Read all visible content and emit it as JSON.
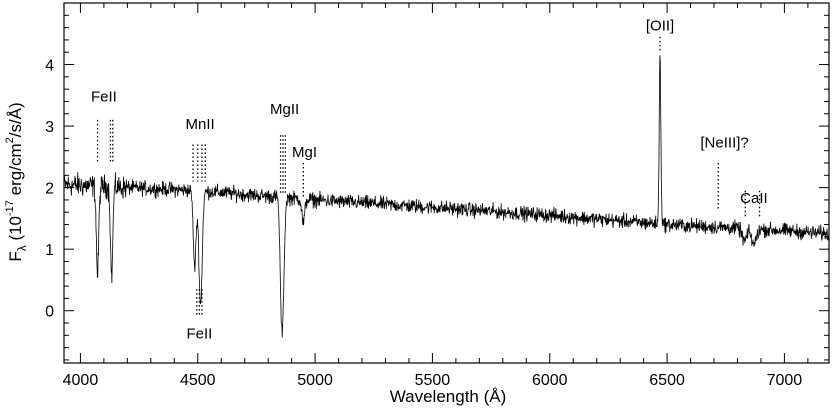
{
  "chart_data": {
    "type": "line",
    "title": "",
    "xlabel": "Wavelength (Å)",
    "ylabel": {
      "base": "F",
      "sub": "λ",
      "pre": " (10",
      "exp": "-17",
      "mid": " erg/cm",
      "exp2": "2",
      "post": "/s/Å)"
    },
    "xlim": [
      3930,
      7190
    ],
    "ylim": [
      -0.85,
      5.0
    ],
    "xticks": [
      4000,
      4500,
      5000,
      5500,
      6000,
      6500,
      7000
    ],
    "yticks": [
      0,
      1,
      2,
      3,
      4
    ],
    "grid": false,
    "series": [
      {
        "color": "#000000",
        "continuum": [
          [
            3930,
            2.05
          ],
          [
            4200,
            2.0
          ],
          [
            4500,
            1.95
          ],
          [
            5000,
            1.8
          ],
          [
            5500,
            1.68
          ],
          [
            6000,
            1.55
          ],
          [
            6500,
            1.4
          ],
          [
            7000,
            1.3
          ],
          [
            7190,
            1.25
          ]
        ],
        "noise": 0.09,
        "absorption_features": [
          {
            "x": 4073,
            "depth": 1.45,
            "width": 5
          },
          {
            "x": 4133,
            "depth": 1.45,
            "width": 5
          },
          {
            "x": 4487,
            "depth": 1.25,
            "width": 6
          },
          {
            "x": 4512,
            "depth": 1.85,
            "width": 7
          },
          {
            "x": 4856,
            "depth": 1.5,
            "width": 6
          },
          {
            "x": 4864,
            "depth": 1.25,
            "width": 6
          },
          {
            "x": 4950,
            "depth": 0.4,
            "width": 6
          },
          {
            "x": 6830,
            "depth": 0.2,
            "width": 10
          },
          {
            "x": 6870,
            "depth": 0.25,
            "width": 10
          }
        ],
        "emission_features": [
          {
            "x": 6470,
            "height": 2.75,
            "width": 3.5
          }
        ]
      }
    ],
    "annotations": [
      {
        "text": "FeII",
        "x": 4100,
        "text_y": 3.4,
        "markers": [
          {
            "x": 4073,
            "y0": 3.1,
            "y1": 2.4
          },
          {
            "x": 4128,
            "y0": 3.1,
            "y1": 2.4
          },
          {
            "x": 4138,
            "y0": 3.1,
            "y1": 2.4
          }
        ]
      },
      {
        "text": "MnII",
        "x": 4510,
        "text_y": 2.95,
        "markers": [
          {
            "x": 4480,
            "y0": 2.7,
            "y1": 2.1
          },
          {
            "x": 4500,
            "y0": 2.7,
            "y1": 2.1
          },
          {
            "x": 4518,
            "y0": 2.7,
            "y1": 2.1
          },
          {
            "x": 4532,
            "y0": 2.7,
            "y1": 2.1
          }
        ]
      },
      {
        "text": "MgII",
        "x": 4870,
        "text_y": 3.2,
        "markers": [
          {
            "x": 4853,
            "y0": 2.85,
            "y1": 1.9
          },
          {
            "x": 4863,
            "y0": 2.85,
            "y1": 1.9
          },
          {
            "x": 4873,
            "y0": 2.85,
            "y1": 1.9
          }
        ]
      },
      {
        "text": "MgI",
        "x": 4955,
        "text_y": 2.5,
        "markers": [
          {
            "x": 4950,
            "y0": 2.4,
            "y1": 1.85
          }
        ]
      },
      {
        "text": "[OII]",
        "x": 6470,
        "text_y": 4.55,
        "markers": [
          {
            "x": 6470,
            "y0": 4.45,
            "y1": 4.2
          }
        ]
      },
      {
        "text": "[NeIII]?",
        "x": 6745,
        "text_y": 2.65,
        "markers": [
          {
            "x": 6718,
            "y0": 2.4,
            "y1": 1.65
          }
        ]
      },
      {
        "text": "CaII",
        "x": 6870,
        "text_y": 1.75,
        "markers": [
          {
            "x": 6833,
            "y0": 1.95,
            "y1": 1.5
          },
          {
            "x": 6894,
            "y0": 1.95,
            "y1": 1.5
          }
        ]
      },
      {
        "text": "FeII",
        "x": 4507,
        "text_y": -0.45,
        "markers": [
          {
            "x": 4496,
            "y0": 0.35,
            "y1": -0.1
          },
          {
            "x": 4507,
            "y0": 0.35,
            "y1": -0.1
          },
          {
            "x": 4518,
            "y0": 0.35,
            "y1": -0.1
          }
        ]
      }
    ]
  }
}
